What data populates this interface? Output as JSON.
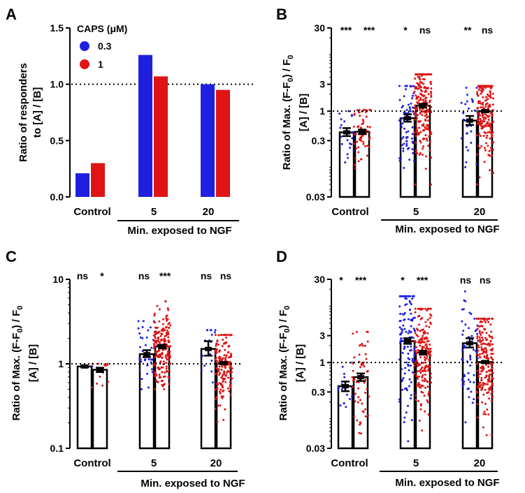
{
  "colors": {
    "blue": "#1f1fe0",
    "red": "#e01414",
    "black": "#000000"
  },
  "chart_data": [
    {
      "id": "A",
      "type": "bar",
      "panel_label": "A",
      "ylabel_lines": [
        "Ratio of responders",
        "to [A] / [B]"
      ],
      "yscale": "linear",
      "ylim": [
        0,
        1.5
      ],
      "yticks": [
        0,
        0.5,
        1.0,
        1.5
      ],
      "ytick_labels": [
        "0.0",
        "0.5",
        "1.0",
        "1.5"
      ],
      "reference_line": 1.0,
      "categories": [
        "Control",
        "5",
        "20"
      ],
      "xlabel": "Min. exposed to NGF",
      "legend": {
        "title": "CAPS (μM)",
        "entries": [
          {
            "label": "0.3",
            "color": "blue"
          },
          {
            "label": "1",
            "color": "red"
          }
        ]
      },
      "series": [
        {
          "name": "0.3",
          "color": "blue",
          "values": [
            0.21,
            1.26,
            1.0
          ]
        },
        {
          "name": "1",
          "color": "red",
          "values": [
            0.3,
            1.07,
            0.95
          ]
        }
      ]
    },
    {
      "id": "B",
      "type": "scatter",
      "panel_label": "B",
      "ylabel_lines": [
        "Ratio of Max. (F-F",
        "0",
        ") / F",
        "0",
        "[A] / [B]"
      ],
      "yscale": "log",
      "ylim": [
        0.03,
        30
      ],
      "yticks": [
        0.03,
        0.3,
        1,
        3,
        30
      ],
      "ytick_labels": [
        "0.03",
        "0.3",
        "1",
        "3",
        "30"
      ],
      "reference_line": 1,
      "categories": [
        "Control",
        "5",
        "20"
      ],
      "xlabel": "Min. exposed to NGF",
      "significance": [
        "***",
        "***",
        "*",
        "ns",
        "**",
        "ns"
      ],
      "bars": [
        {
          "group": 0,
          "color": "blue",
          "mean": 0.42,
          "sem_low": 0.36,
          "sem_high": 0.5,
          "n": 22,
          "range": [
            0.06,
            1.0
          ]
        },
        {
          "group": 0,
          "color": "red",
          "mean": 0.43,
          "sem_low": 0.39,
          "sem_high": 0.47,
          "n": 60,
          "range": [
            0.06,
            1.05
          ]
        },
        {
          "group": 1,
          "color": "blue",
          "mean": 0.75,
          "sem_low": 0.65,
          "sem_high": 0.88,
          "n": 75,
          "range": [
            0.05,
            2.8
          ]
        },
        {
          "group": 1,
          "color": "red",
          "mean": 1.25,
          "sem_low": 1.15,
          "sem_high": 1.35,
          "n": 230,
          "range": [
            0.05,
            4.5
          ]
        },
        {
          "group": 2,
          "color": "blue",
          "mean": 0.68,
          "sem_low": 0.57,
          "sem_high": 0.82,
          "n": 32,
          "range": [
            0.07,
            2.6
          ]
        },
        {
          "group": 2,
          "color": "red",
          "mean": 1.0,
          "sem_low": 0.96,
          "sem_high": 1.05,
          "n": 200,
          "range": [
            0.05,
            2.8
          ]
        }
      ]
    },
    {
      "id": "C",
      "type": "scatter",
      "panel_label": "C",
      "ylabel_lines": [
        "Ratio of Max. (F-F",
        "0",
        ") / F",
        "0",
        "[A] /  [B]"
      ],
      "yscale": "log",
      "ylim": [
        0.1,
        10
      ],
      "yticks": [
        0.1,
        1,
        10
      ],
      "ytick_labels": [
        "0.1",
        "1",
        "10"
      ],
      "reference_line": 1,
      "categories": [
        "Control",
        "5",
        "20"
      ],
      "xlabel": "Min. exposed to NGF",
      "significance": [
        "ns",
        "*",
        "ns",
        "***",
        "ns",
        "ns"
      ],
      "bars": [
        {
          "group": 0,
          "color": "blue",
          "mean": 0.93,
          "sem_low": 0.91,
          "sem_high": 0.95,
          "n": 3,
          "range": [
            0.92,
            0.96
          ]
        },
        {
          "group": 0,
          "color": "red",
          "mean": 0.85,
          "sem_low": 0.8,
          "sem_high": 0.9,
          "n": 16,
          "range": [
            0.35,
            1.0
          ]
        },
        {
          "group": 1,
          "color": "blue",
          "mean": 1.3,
          "sem_low": 1.2,
          "sem_high": 1.45,
          "n": 40,
          "range": [
            0.5,
            3.2
          ]
        },
        {
          "group": 1,
          "color": "red",
          "mean": 1.6,
          "sem_low": 1.52,
          "sem_high": 1.68,
          "n": 200,
          "range": [
            0.5,
            5.5
          ]
        },
        {
          "group": 2,
          "color": "blue",
          "mean": 1.5,
          "sem_low": 1.25,
          "sem_high": 1.85,
          "n": 18,
          "range": [
            0.3,
            2.5
          ]
        },
        {
          "group": 2,
          "color": "red",
          "mean": 1.02,
          "sem_low": 0.99,
          "sem_high": 1.05,
          "n": 170,
          "range": [
            0.2,
            2.2
          ]
        }
      ]
    },
    {
      "id": "D",
      "type": "scatter",
      "panel_label": "D",
      "ylabel_lines": [
        "Ratio of Max. (F-F",
        "0",
        ") / F",
        "0",
        "[A] / [B]"
      ],
      "yscale": "log",
      "ylim": [
        0.03,
        30
      ],
      "yticks": [
        0.03,
        0.3,
        1,
        3,
        30
      ],
      "ytick_labels": [
        "0.03",
        "0.3",
        "1",
        "3",
        "30"
      ],
      "reference_line": 1,
      "categories": [
        "Control",
        "5",
        "20"
      ],
      "xlabel": "Min. exposed to NGF",
      "significance": [
        "*",
        "***",
        "*",
        "***",
        "ns",
        "ns"
      ],
      "bars": [
        {
          "group": 0,
          "color": "blue",
          "mean": 0.38,
          "sem_low": 0.31,
          "sem_high": 0.46,
          "n": 20,
          "range": [
            0.08,
            1.0
          ]
        },
        {
          "group": 0,
          "color": "red",
          "mean": 0.55,
          "sem_low": 0.47,
          "sem_high": 0.64,
          "n": 60,
          "range": [
            0.04,
            3.5
          ]
        },
        {
          "group": 1,
          "color": "blue",
          "mean": 2.4,
          "sem_low": 2.15,
          "sem_high": 2.7,
          "n": 130,
          "range": [
            0.04,
            15
          ]
        },
        {
          "group": 1,
          "color": "red",
          "mean": 1.5,
          "sem_low": 1.38,
          "sem_high": 1.62,
          "n": 200,
          "range": [
            0.04,
            9
          ]
        },
        {
          "group": 2,
          "color": "blue",
          "mean": 2.2,
          "sem_low": 1.85,
          "sem_high": 2.7,
          "n": 60,
          "range": [
            0.04,
            20
          ]
        },
        {
          "group": 2,
          "color": "red",
          "mean": 1.02,
          "sem_low": 0.98,
          "sem_high": 1.06,
          "n": 220,
          "range": [
            0.04,
            6
          ]
        }
      ]
    }
  ]
}
